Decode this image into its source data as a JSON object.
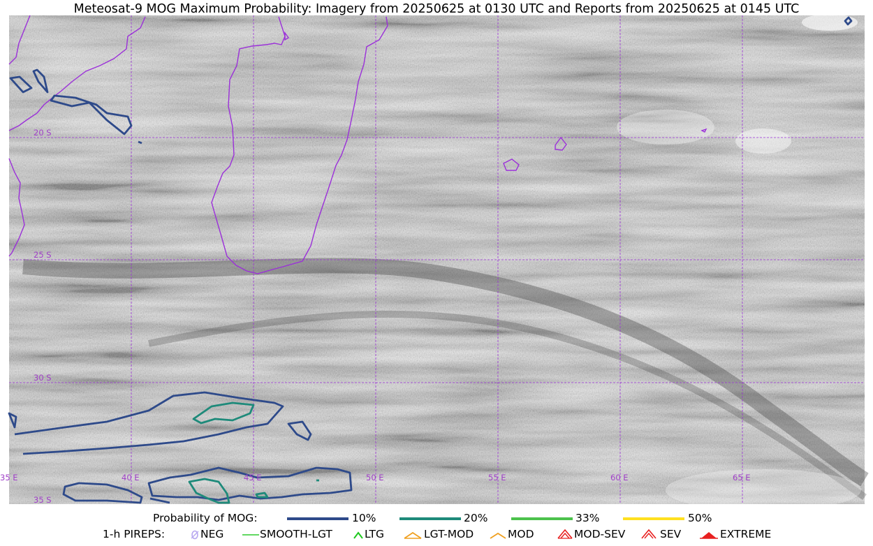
{
  "title": "Meteosat-9 MOG Maximum Probability: Imagery from 20250625 at 0130 UTC and Reports from 20250625 at 0145 UTC",
  "map": {
    "lat_labels": [
      "20 S",
      "25 S",
      "30 S",
      "35 S"
    ],
    "lon_labels": [
      "35 E",
      "40 E",
      "45 E",
      "50 E",
      "55 E",
      "60 E",
      "65 E"
    ],
    "colors": {
      "coastline": "#9b30d9",
      "gridline": "#9b30d9",
      "background": "#b9b9b9"
    }
  },
  "legend": {
    "probability": {
      "label": "Probability of MOG:",
      "items": [
        {
          "label": "10%",
          "color": "#2e4a8a"
        },
        {
          "label": "20%",
          "color": "#1e8a7a"
        },
        {
          "label": "33%",
          "color": "#4cc24c"
        },
        {
          "label": "50%",
          "color": "#ffe020"
        }
      ]
    },
    "pireps": {
      "label": "1-h PIREPS:",
      "items": [
        {
          "label": "NEG",
          "icon": "neg-icon",
          "color": "#b8a8f0"
        },
        {
          "label": "SMOOTH-LGT",
          "icon": "smooth-lgt-icon",
          "color": "#2ecc2e"
        },
        {
          "label": "LTG",
          "icon": "ltg-icon",
          "color": "#1ec81e"
        },
        {
          "label": "LGT-MOD",
          "icon": "lgt-mod-icon",
          "color": "#f0a020"
        },
        {
          "label": "MOD",
          "icon": "mod-icon",
          "color": "#f0a020"
        },
        {
          "label": "MOD-SEV",
          "icon": "mod-sev-icon",
          "color": "#e82020"
        },
        {
          "label": "SEV",
          "icon": "sev-icon",
          "color": "#e82020"
        },
        {
          "label": "EXTREME",
          "icon": "extreme-icon",
          "color": "#e82020"
        }
      ]
    }
  }
}
